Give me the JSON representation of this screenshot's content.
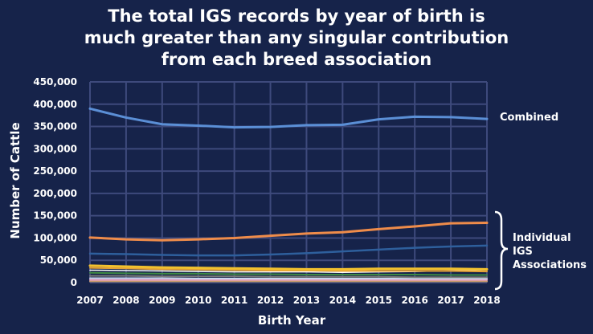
{
  "chart_data": {
    "type": "line",
    "title_lines": [
      "The total IGS records by year of birth is",
      "much greater than any singular contribution",
      "from each breed association"
    ],
    "xlabel": "Birth Year",
    "ylabel": "Number of Cattle",
    "x": [
      2007,
      2008,
      2009,
      2010,
      2011,
      2012,
      2013,
      2014,
      2015,
      2016,
      2017,
      2018
    ],
    "ylim": [
      0,
      450000
    ],
    "yticks": [
      {
        "value": 0,
        "label": "0"
      },
      {
        "value": 50000,
        "label": "50,000"
      },
      {
        "value": 100000,
        "label": "100,000"
      },
      {
        "value": 150000,
        "label": "150,000"
      },
      {
        "value": 200000,
        "label": "200,000"
      },
      {
        "value": 250000,
        "label": "250,000"
      },
      {
        "value": 300000,
        "label": "300,000"
      },
      {
        "value": 350000,
        "label": "350,000"
      },
      {
        "value": 400000,
        "label": "400,000"
      },
      {
        "value": 450000,
        "label": "450,000"
      }
    ],
    "grid": true,
    "annotations": {
      "combined": "Combined",
      "individual_lines": [
        "Individual",
        "IGS",
        "Associations"
      ]
    },
    "series": [
      {
        "color": "#5b8fd6",
        "width": 3,
        "values": [
          390000,
          370000,
          355000,
          352000,
          348000,
          349000,
          353000,
          354000,
          366000,
          372000,
          371000,
          367000
        ]
      },
      {
        "color": "#ef8c4a",
        "width": 3,
        "values": [
          101000,
          97000,
          95000,
          97000,
          100000,
          105000,
          110000,
          113000,
          120000,
          126000,
          133000,
          134000
        ]
      },
      {
        "color": "#2e5f9c",
        "width": 2.5,
        "values": [
          65000,
          64000,
          62000,
          61000,
          61000,
          63000,
          66000,
          70000,
          74000,
          78000,
          81000,
          83000
        ]
      },
      {
        "color": "#f2c12e",
        "width": 3,
        "values": [
          38000,
          36000,
          34000,
          33000,
          32000,
          31000,
          30000,
          30000,
          31000,
          31000,
          31000,
          30000
        ]
      },
      {
        "color": "#e7a336",
        "width": 2,
        "values": [
          33000,
          32000,
          30000,
          29000,
          28000,
          27000,
          27000,
          26000,
          26000,
          26000,
          26000,
          25000
        ]
      },
      {
        "color": "#ffffff",
        "width": 1.5,
        "values": [
          28000,
          27000,
          26000,
          25000,
          24000,
          24000,
          24000,
          23000,
          24000,
          25000,
          27000,
          29000
        ]
      },
      {
        "color": "#3f8a44",
        "width": 2,
        "values": [
          22000,
          21000,
          20000,
          20000,
          19000,
          19000,
          18000,
          18000,
          18000,
          18000,
          17000,
          17000
        ]
      },
      {
        "color": "#7a7a7a",
        "width": 2,
        "values": [
          15000,
          15000,
          14000,
          14000,
          14000,
          13000,
          13000,
          13000,
          13000,
          12000,
          12000,
          12000
        ]
      },
      {
        "color": "#c7d6ee",
        "width": 2,
        "values": [
          10000,
          10000,
          10000,
          9000,
          9000,
          9000,
          9000,
          9000,
          9000,
          9000,
          9000,
          9000
        ]
      },
      {
        "color": "#e8a2c4",
        "width": 2,
        "values": [
          6000,
          6000,
          6000,
          6000,
          6000,
          6000,
          6000,
          6000,
          6000,
          6000,
          6000,
          6000
        ]
      },
      {
        "color": "#c79a6b",
        "width": 2,
        "values": [
          3000,
          3000,
          3000,
          3000,
          3000,
          3000,
          3000,
          3000,
          3000,
          3000,
          3000,
          3000
        ]
      }
    ]
  }
}
